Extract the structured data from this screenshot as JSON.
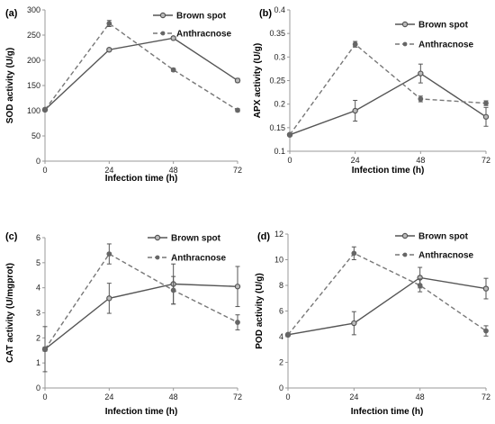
{
  "chart_data": [
    {
      "type": "line",
      "panel_label": "(a)",
      "xlabel": "Infection time (h)",
      "ylabel": "SOD activity (U/g)",
      "x": [
        0,
        24,
        48,
        72
      ],
      "xlim": [
        0,
        72
      ],
      "ylim": [
        0,
        300
      ],
      "yticks": [
        0,
        50,
        100,
        150,
        200,
        250,
        300
      ],
      "series": [
        {
          "name": "Brown spot",
          "values": [
            102,
            221,
            244,
            160
          ],
          "errors": [
            3,
            3,
            3,
            4
          ],
          "style": "solid"
        },
        {
          "name": "Anthracnose",
          "values": [
            102,
            273,
            181,
            101
          ],
          "errors": [
            3,
            6,
            3,
            3
          ],
          "style": "dashed"
        }
      ],
      "legend_position": "top-right"
    },
    {
      "type": "line",
      "panel_label": "(b)",
      "xlabel": "Infection time (h)",
      "ylabel": "APX activity (U/g)",
      "x": [
        0,
        24,
        48,
        72
      ],
      "xlim": [
        0,
        72
      ],
      "ylim": [
        0.1,
        0.4
      ],
      "yticks": [
        0.1,
        0.15,
        0.2,
        0.25,
        0.3,
        0.35,
        0.4
      ],
      "series": [
        {
          "name": "Brown spot",
          "values": [
            0.135,
            0.186,
            0.265,
            0.173
          ],
          "errors": [
            0.003,
            0.022,
            0.02,
            0.02
          ],
          "style": "solid"
        },
        {
          "name": "Anthracnose",
          "values": [
            0.135,
            0.327,
            0.211,
            0.202
          ],
          "errors": [
            0.003,
            0.006,
            0.006,
            0.005
          ],
          "style": "dashed"
        }
      ],
      "legend_position": "top-right"
    },
    {
      "type": "line",
      "panel_label": "(c)",
      "xlabel": "Infection time (h)",
      "ylabel": "CAT activity (U/mgprot)",
      "x": [
        0,
        24,
        48,
        72
      ],
      "xlim": [
        0,
        72
      ],
      "ylim": [
        0,
        6
      ],
      "yticks": [
        0,
        1,
        2,
        3,
        4,
        5,
        6
      ],
      "series": [
        {
          "name": "Brown spot",
          "values": [
            1.55,
            3.58,
            4.15,
            4.05
          ],
          "errors": [
            0.9,
            0.6,
            0.8,
            0.8
          ],
          "style": "solid"
        },
        {
          "name": "Anthracnose",
          "values": [
            1.55,
            5.35,
            3.9,
            2.62
          ],
          "errors": [
            0.08,
            0.4,
            0.55,
            0.3
          ],
          "style": "dashed"
        }
      ],
      "legend_position": "top-right"
    },
    {
      "type": "line",
      "panel_label": "(d)",
      "xlabel": "Infection time (h)",
      "ylabel": "POD activity (U/g)",
      "x": [
        0,
        24,
        48,
        72
      ],
      "xlim": [
        0,
        72
      ],
      "ylim": [
        0,
        12
      ],
      "yticks": [
        0,
        2,
        4,
        6,
        8,
        10,
        12
      ],
      "series": [
        {
          "name": "Brown spot",
          "values": [
            4.15,
            5.05,
            8.6,
            7.75
          ],
          "errors": [
            0.1,
            0.9,
            0.8,
            0.8
          ],
          "style": "solid"
        },
        {
          "name": "Anthracnose",
          "values": [
            4.15,
            10.5,
            8.0,
            4.45
          ],
          "errors": [
            0.1,
            0.5,
            0.5,
            0.4
          ],
          "style": "dashed"
        }
      ],
      "legend_position": "top-right"
    }
  ]
}
